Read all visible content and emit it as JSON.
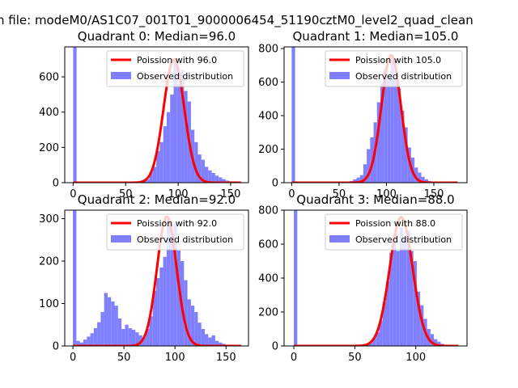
{
  "figure": {
    "suptitle": "n file: modeM0/AS1C07_001T01_9000006454_51190cztM0_level2_quad_clean"
  },
  "colors": {
    "hist": "#8080ff",
    "poisson": "#ff0000"
  },
  "chart_data": [
    {
      "type": "bar",
      "title": "Quadrant 0: Median=96.0",
      "xlim": [
        -8,
        167
      ],
      "ylim": [
        0,
        770
      ],
      "xticks": [
        0,
        50,
        100,
        150
      ],
      "yticks": [
        0,
        200,
        400,
        600
      ],
      "legend": {
        "position": "top-right",
        "entries": [
          "Poission with 96.0",
          "Observed distribution"
        ]
      },
      "series": [
        {
          "name": "Observed distribution",
          "kind": "histogram",
          "bin_width": 3.3,
          "x": [
            0,
            3.3,
            6.6,
            9.9,
            13.2,
            16.5,
            19.8,
            23.1,
            26.4,
            29.7,
            33,
            36.3,
            39.6,
            42.9,
            46.2,
            49.5,
            52.8,
            56.1,
            59.4,
            62.7,
            66,
            69.3,
            72.6,
            75.9,
            79.2,
            82.5,
            85.8,
            89.1,
            92.4,
            95.7,
            99,
            102.3,
            105.6,
            108.9,
            112.2,
            115.5,
            118.8,
            122.1,
            125.4,
            128.7,
            132,
            135.3,
            138.6,
            141.9,
            145.2,
            148.5,
            151.8,
            155.1
          ],
          "values": [
            770,
            3,
            2,
            2,
            2,
            2,
            2,
            2,
            2,
            2,
            2,
            2,
            2,
            2,
            2,
            2,
            3,
            3,
            4,
            6,
            10,
            18,
            60,
            90,
            180,
            230,
            320,
            400,
            500,
            700,
            560,
            640,
            520,
            460,
            300,
            230,
            160,
            130,
            90,
            70,
            55,
            40,
            30,
            20,
            12,
            8,
            5,
            3
          ]
        },
        {
          "name": "Poission with 96.0",
          "kind": "poisson",
          "mean": 96.0,
          "scale": 700,
          "x_range": [
            0,
            160
          ]
        }
      ]
    },
    {
      "type": "bar",
      "title": "Quadrant 1: Median=105.0",
      "xlim": [
        -8,
        185
      ],
      "ylim": [
        0,
        810
      ],
      "xticks": [
        0,
        50,
        100,
        150
      ],
      "yticks": [
        0,
        200,
        400,
        600,
        800
      ],
      "legend": {
        "position": "top-right",
        "entries": [
          "Poission with 105.0",
          "Observed distribution"
        ]
      },
      "series": [
        {
          "name": "Observed distribution",
          "kind": "histogram",
          "bin_width": 3.6,
          "x": [
            0,
            3.6,
            7.2,
            10.8,
            14.4,
            18,
            21.6,
            25.2,
            28.8,
            32.4,
            36,
            39.6,
            43.2,
            46.8,
            50.4,
            54,
            57.6,
            61.2,
            64.8,
            68.4,
            72,
            75.6,
            79.2,
            82.8,
            86.4,
            90,
            93.6,
            97.2,
            100.8,
            104.4,
            108,
            111.6,
            115.2,
            118.8,
            122.4,
            126,
            129.6,
            133.2,
            136.8,
            140.4,
            144
          ],
          "values": [
            810,
            2,
            2,
            2,
            2,
            2,
            2,
            2,
            2,
            2,
            2,
            2,
            2,
            2,
            2,
            3,
            5,
            10,
            20,
            30,
            45,
            110,
            200,
            270,
            360,
            480,
            590,
            680,
            640,
            750,
            620,
            560,
            430,
            330,
            210,
            150,
            90,
            60,
            35,
            20,
            10
          ]
        },
        {
          "name": "Poission with 105.0",
          "kind": "poisson",
          "mean": 105.0,
          "scale": 760,
          "x_range": [
            0,
            175
          ]
        }
      ]
    },
    {
      "type": "bar",
      "title": "Quadrant 2: Median=92.0",
      "xlim": [
        -8,
        172
      ],
      "ylim": [
        0,
        320
      ],
      "xticks": [
        0,
        50,
        100,
        150
      ],
      "yticks": [
        0,
        100,
        200,
        300
      ],
      "legend": {
        "position": "top-right",
        "entries": [
          "Poission with 92.0",
          "Observed distribution"
        ]
      },
      "series": [
        {
          "name": "Observed distribution",
          "kind": "histogram",
          "bin_width": 3.4,
          "x": [
            0,
            3.4,
            6.8,
            10.2,
            13.6,
            17,
            20.4,
            23.8,
            27.2,
            30.6,
            34,
            37.4,
            40.8,
            44.2,
            47.6,
            51,
            54.4,
            57.8,
            61.2,
            64.6,
            68,
            71.4,
            74.8,
            78.2,
            81.6,
            85,
            88.4,
            91.8,
            95.2,
            98.6,
            102,
            105.4,
            108.8,
            112.2,
            115.6,
            119,
            122.4,
            125.8,
            129.2,
            132.6,
            136,
            139.4,
            142.8,
            146.2,
            149.6,
            153
          ],
          "values": [
            320,
            12,
            8,
            15,
            22,
            30,
            42,
            56,
            80,
            125,
            115,
            105,
            95,
            65,
            40,
            50,
            42,
            38,
            32,
            25,
            20,
            40,
            70,
            130,
            160,
            185,
            210,
            300,
            260,
            290,
            225,
            200,
            155,
            110,
            95,
            80,
            55,
            40,
            28,
            20,
            25,
            12,
            8,
            5,
            3,
            2
          ]
        },
        {
          "name": "Poission with 92.0",
          "kind": "poisson",
          "mean": 92.0,
          "scale": 305,
          "x_range": [
            0,
            165
          ]
        }
      ]
    },
    {
      "type": "bar",
      "title": "Quadrant 3: Median=88.0",
      "xlim": [
        -8,
        142
      ],
      "ylim": [
        0,
        800
      ],
      "xticks": [
        0,
        50,
        100
      ],
      "yticks": [
        0,
        200,
        400,
        600,
        800
      ],
      "legend": {
        "position": "top-right",
        "entries": [
          "Poission with 88.0",
          "Observed distribution"
        ]
      },
      "series": [
        {
          "name": "Observed distribution",
          "kind": "histogram",
          "bin_width": 2.8,
          "x": [
            0,
            2.8,
            5.6,
            8.4,
            11.2,
            14,
            16.8,
            19.6,
            22.4,
            25.2,
            28,
            30.8,
            33.6,
            36.4,
            39.2,
            42,
            44.8,
            47.6,
            50.4,
            53.2,
            56,
            58.8,
            61.6,
            64.4,
            67.2,
            70,
            72.8,
            75.6,
            78.4,
            81.2,
            84,
            86.8,
            89.6,
            92.4,
            95.2,
            98,
            100.8,
            103.6,
            106.4,
            109.2,
            112,
            114.8,
            117.6,
            120.4,
            123.2
          ],
          "values": [
            800,
            2,
            2,
            2,
            2,
            2,
            2,
            2,
            2,
            2,
            2,
            2,
            2,
            2,
            2,
            2,
            2,
            2,
            2,
            2,
            4,
            8,
            18,
            45,
            80,
            150,
            260,
            380,
            550,
            640,
            560,
            700,
            640,
            680,
            560,
            500,
            320,
            240,
            160,
            100,
            70,
            40,
            25,
            12,
            6
          ]
        },
        {
          "name": "Poission with 88.0",
          "kind": "poisson",
          "mean": 88.0,
          "scale": 760,
          "x_range": [
            0,
            135
          ]
        }
      ]
    }
  ]
}
